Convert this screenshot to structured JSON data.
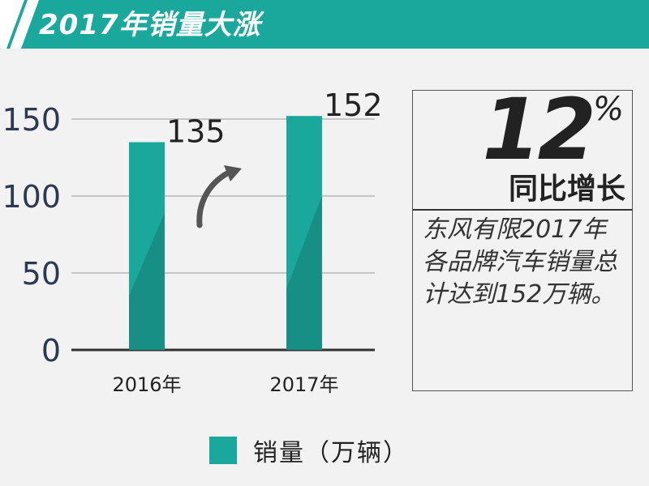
{
  "header": {
    "title": "2017年销量大涨",
    "bar_color": "#1aa89c"
  },
  "infobox": {
    "growth_number": "12",
    "percent_sign": "%",
    "growth_label": "同比增长",
    "description": "东风有限2017年各品牌汽车销量总计达到152万辆。"
  },
  "legend": {
    "label": "销量（万辆）",
    "swatch_color": "#1aa89c"
  },
  "chart_data": {
    "type": "bar",
    "categories": [
      "2016年",
      "2017年"
    ],
    "series": [
      {
        "name": "销量（万辆）",
        "values": [
          135,
          152
        ]
      }
    ],
    "ylim": [
      0,
      150
    ],
    "yticks": [
      0,
      50,
      100,
      150
    ],
    "grid": true,
    "legend_position": "bottom-center",
    "colors": {
      "bar": "#1aa89c",
      "bar_shade": "#178f84"
    },
    "data_labels": [
      "135",
      "152"
    ]
  }
}
